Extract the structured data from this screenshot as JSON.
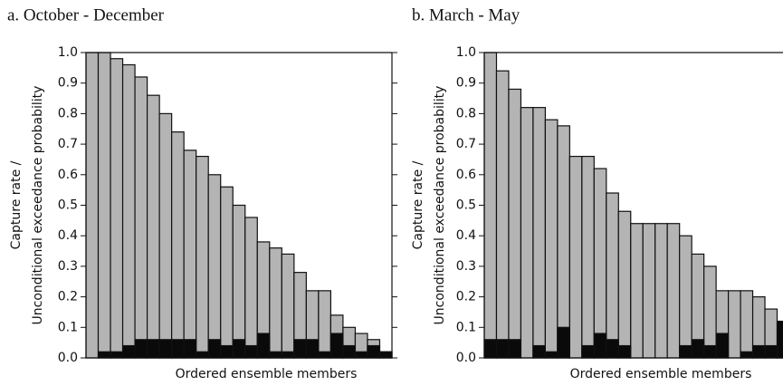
{
  "chart_data": [
    {
      "type": "bar",
      "title": "a. October - December",
      "y_label": [
        "Capture rate /",
        "Unconditional exceedance probability"
      ],
      "x_label": "Ordered ensemble members",
      "categories": [
        null,
        null,
        null,
        null,
        null,
        null,
        null,
        null,
        null,
        null,
        null,
        null,
        null,
        null,
        null,
        null,
        null,
        null,
        null,
        null,
        null,
        null,
        null,
        null,
        null
      ],
      "series": [
        {
          "color": "#b4b4b4",
          "values": [
            1.0,
            1.0,
            0.98,
            0.96,
            0.92,
            0.86,
            0.8,
            0.74,
            0.68,
            0.66,
            0.6,
            0.56,
            0.5,
            0.46,
            0.38,
            0.36,
            0.34,
            0.28,
            0.22,
            0.22,
            0.14,
            0.1,
            0.08,
            0.06,
            0.02
          ]
        },
        {
          "color": "#0a0a0a",
          "values": [
            0,
            0.02,
            0.02,
            0.04,
            0.06,
            0.06,
            0.06,
            0.06,
            0.06,
            0.02,
            0.06,
            0.04,
            0.06,
            0.04,
            0.08,
            0.02,
            0.02,
            0.06,
            0.06,
            0.02,
            0.08,
            0.04,
            0.02,
            0.04,
            0.02
          ]
        }
      ],
      "ylim": [
        0,
        1.0
      ],
      "yticks": [
        {
          "value": 0,
          "label": "0.0"
        },
        0.1,
        0.2,
        0.3,
        0.4,
        0.5,
        0.6,
        0.7,
        0.8,
        0.9,
        {
          "value": 1,
          "label": "1.0"
        }
      ]
    },
    {
      "type": "bar",
      "title": "b. March - May",
      "y_label": [
        "Capture rate /",
        "Unconditional exceedance probability"
      ],
      "x_label": "Ordered ensemble members",
      "categories": [
        null,
        null,
        null,
        null,
        null,
        null,
        null,
        null,
        null,
        null,
        null,
        null,
        null,
        null,
        null,
        null,
        null,
        null,
        null,
        null,
        null,
        null,
        null,
        null,
        null
      ],
      "series": [
        {
          "color": "#b4b4b4",
          "values": [
            1.0,
            0.94,
            0.88,
            0.82,
            0.82,
            0.78,
            0.76,
            0.66,
            0.66,
            0.62,
            0.54,
            0.48,
            0.44,
            0.44,
            0.44,
            0.44,
            0.4,
            0.34,
            0.3,
            0.22,
            0.22,
            0.22,
            0.2,
            0.16,
            0.12
          ]
        },
        {
          "color": "#0a0a0a",
          "values": [
            0.06,
            0.06,
            0.06,
            0,
            0.04,
            0.02,
            0.1,
            0,
            0.04,
            0.08,
            0.06,
            0.04,
            0,
            0,
            0,
            0,
            0.04,
            0.06,
            0.04,
            0.08,
            0,
            0.02,
            0.04,
            0.04,
            0.12
          ]
        }
      ],
      "ylim": [
        0,
        1.0
      ],
      "yticks": [
        {
          "value": 0,
          "label": "0.0"
        },
        0.1,
        0.2,
        0.3,
        0.4,
        0.5,
        0.6,
        0.7,
        0.8,
        0.9,
        {
          "value": 1,
          "label": "1.0"
        }
      ]
    }
  ]
}
